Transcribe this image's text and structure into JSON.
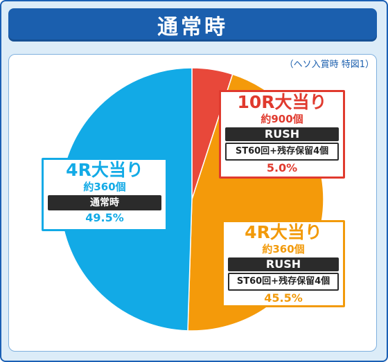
{
  "title": "通常時",
  "note": "（ヘソ入賞時 特図1）",
  "colors": {
    "red": "#e8483a",
    "orange": "#f49a0a",
    "blue": "#12aae6",
    "title_bg": "#1b5fae"
  },
  "boxes": {
    "r10": {
      "title": "10R大当り",
      "count": "約900個",
      "mode": "RUSH",
      "detail": "ST60回+残存保留4個",
      "percent": "5.0%"
    },
    "r4_rush": {
      "title": "4R大当り",
      "count": "約360個",
      "mode": "RUSH",
      "detail": "ST60回+残存保留4個",
      "percent": "45.5%"
    },
    "r4_normal": {
      "title": "4R大当り",
      "count": "約360個",
      "mode": "通常時",
      "percent": "49.5%"
    }
  },
  "chart_data": {
    "type": "pie",
    "title": "通常時",
    "slices": [
      {
        "label": "10R大当り",
        "value": 5.0,
        "color": "#e8483a"
      },
      {
        "label": "4R大当り",
        "value": 45.5,
        "color": "#f49a0a"
      },
      {
        "label": "4R大当り",
        "value": 49.5,
        "color": "#12aae6"
      }
    ],
    "start": "top",
    "direction": "clockwise"
  }
}
